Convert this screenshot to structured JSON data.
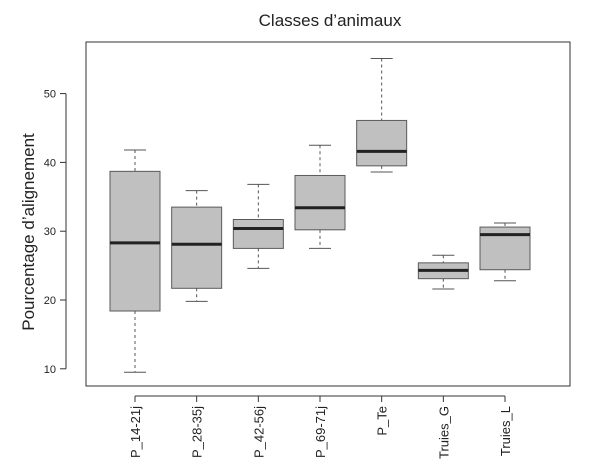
{
  "chart_data": {
    "type": "box",
    "title": "Classes d’animaux",
    "ylabel": "Pourcentage d’alignement",
    "xlabel": "",
    "ylim": [
      7.5,
      57.5
    ],
    "yticks": [
      10,
      20,
      30,
      40,
      50
    ],
    "categories": [
      "P_14-21j",
      "P_28-35j",
      "P_42-56j",
      "P_69-71j",
      "P_Te",
      "Truies_G",
      "Truies_L"
    ],
    "boxes": [
      {
        "label": "P_14-21j",
        "min": 9.5,
        "q1": 18.4,
        "median": 28.3,
        "q3": 38.7,
        "max": 41.8
      },
      {
        "label": "P_28-35j",
        "min": 19.8,
        "q1": 21.7,
        "median": 28.1,
        "q3": 33.5,
        "max": 35.9
      },
      {
        "label": "P_42-56j",
        "min": 24.6,
        "q1": 27.5,
        "median": 30.4,
        "q3": 31.7,
        "max": 36.8
      },
      {
        "label": "P_69-71j",
        "min": 27.5,
        "q1": 30.2,
        "median": 33.4,
        "q3": 38.1,
        "max": 42.5
      },
      {
        "label": "P_Te",
        "min": 38.6,
        "q1": 39.5,
        "median": 41.6,
        "q3": 46.1,
        "max": 55.1
      },
      {
        "label": "Truies_G",
        "min": 21.6,
        "q1": 23.1,
        "median": 24.3,
        "q3": 25.4,
        "max": 26.5
      },
      {
        "label": "Truies_L",
        "min": 22.8,
        "q1": 24.4,
        "median": 29.5,
        "q3": 30.6,
        "max": 31.2
      }
    ],
    "grid": false,
    "legend": "none",
    "colors": {
      "box_fill": "#c0c0c0",
      "box_stroke": "#5a5a5a",
      "median": "#222222",
      "whisker": "#555555",
      "axis": "#333333"
    }
  }
}
